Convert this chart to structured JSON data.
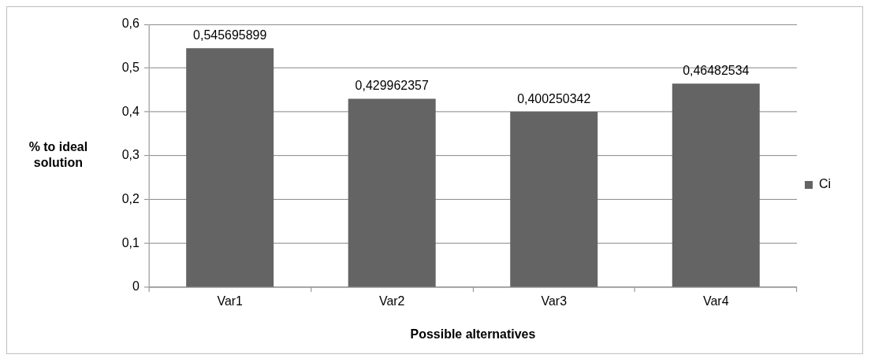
{
  "chart_data": {
    "type": "bar",
    "xlabel": "Possible alternatives",
    "ylabel": "% to ideal solution",
    "categories": [
      "Var1",
      "Var2",
      "Var3",
      "Var4"
    ],
    "series": [
      {
        "name": "Ci",
        "color": "#646464",
        "values": [
          0.545695899,
          0.429962357,
          0.400250342,
          0.46482534
        ],
        "value_labels": [
          "0,545695899",
          "0,429962357",
          "0,400250342",
          "0,46482534"
        ]
      }
    ],
    "ylim": [
      0,
      0.6
    ],
    "yticks": [
      {
        "value": 0,
        "label": "0"
      },
      {
        "value": 0.1,
        "label": "0,1"
      },
      {
        "value": 0.2,
        "label": "0,2"
      },
      {
        "value": 0.3,
        "label": "0,3"
      },
      {
        "value": 0.4,
        "label": "0,4"
      },
      {
        "value": 0.5,
        "label": "0,5"
      },
      {
        "value": 0.6,
        "label": "0,6"
      }
    ],
    "grid": "y",
    "legend": "right"
  }
}
